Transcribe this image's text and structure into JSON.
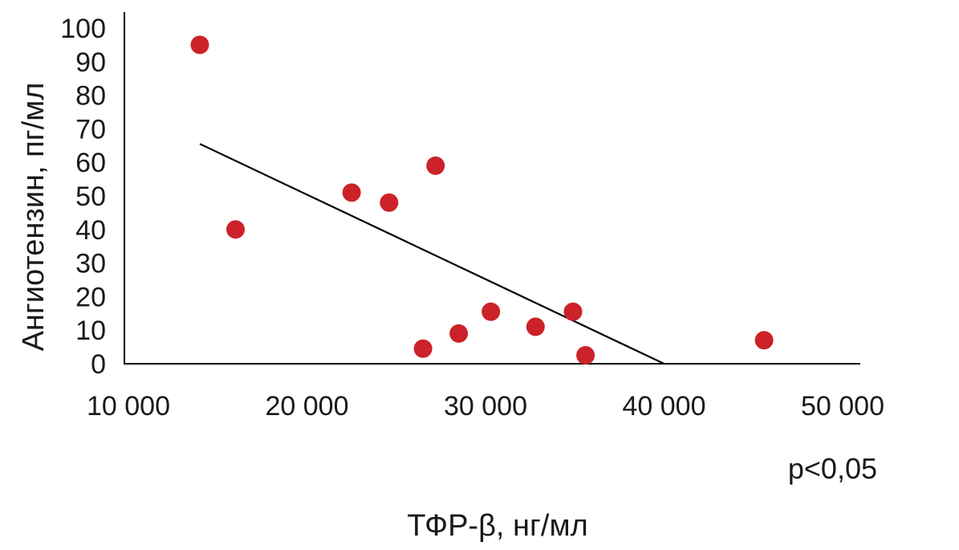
{
  "chart_data": {
    "type": "scatter",
    "xlabel": "ТФР-β, нг/мл",
    "ylabel": "Ангиотензин, пг/мл",
    "annotation": "p<0,05",
    "xlim": [
      10000,
      50000
    ],
    "ylim": [
      0,
      100
    ],
    "x_ticks": [
      10000,
      20000,
      30000,
      40000,
      50000
    ],
    "x_tick_labels": [
      "10 000",
      "20 000",
      "30 000",
      "40 000",
      "50 000"
    ],
    "y_ticks": [
      0,
      10,
      20,
      30,
      40,
      50,
      60,
      70,
      80,
      90,
      100
    ],
    "y_tick_labels": [
      "0",
      "10",
      "20",
      "30",
      "40",
      "50",
      "60",
      "70",
      "80",
      "90",
      "100"
    ],
    "grid": false,
    "legend": "none",
    "point_color": "#cc2229",
    "line_color": "#000000",
    "points": [
      {
        "x": 14000,
        "y": 95
      },
      {
        "x": 16000,
        "y": 40
      },
      {
        "x": 22500,
        "y": 51
      },
      {
        "x": 24600,
        "y": 48
      },
      {
        "x": 26500,
        "y": 4.5
      },
      {
        "x": 27200,
        "y": 59
      },
      {
        "x": 28500,
        "y": 9
      },
      {
        "x": 30300,
        "y": 15.5
      },
      {
        "x": 32800,
        "y": 11
      },
      {
        "x": 34900,
        "y": 15.5
      },
      {
        "x": 35600,
        "y": 2.5
      },
      {
        "x": 45600,
        "y": 7
      }
    ],
    "trendline": {
      "x": [
        14000,
        40000
      ],
      "y": [
        65.5,
        0
      ]
    }
  }
}
